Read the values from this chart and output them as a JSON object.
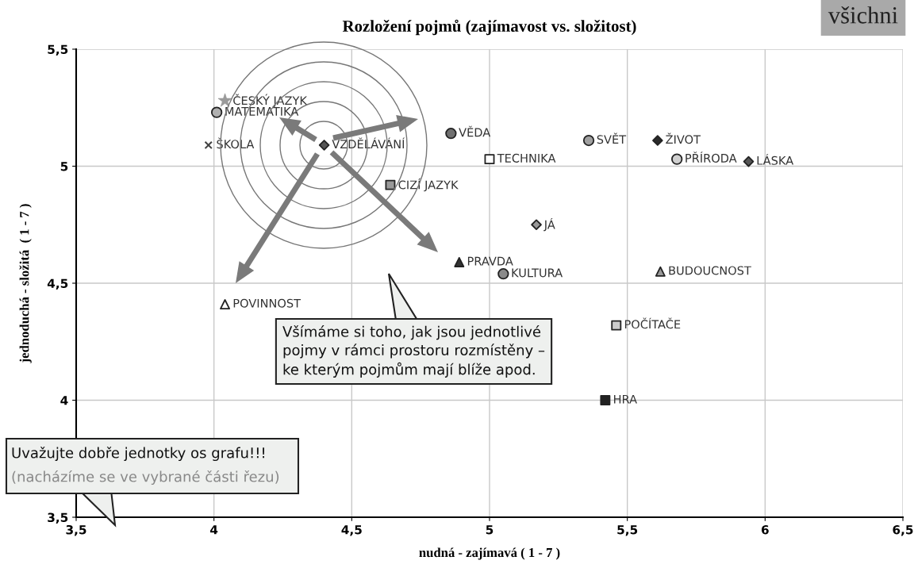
{
  "chart_data": {
    "type": "scatter",
    "title": "Rozložení pojmů (zajímavost vs. složitost)",
    "xlabel": "nudná - zajímavá ( 1 - 7 )",
    "ylabel": "jednoduchá - složitá  ( 1 - 7 )",
    "xlim": [
      3.5,
      6.5
    ],
    "ylim": [
      3.5,
      5.5
    ],
    "xticks": [
      {
        "value": 3.5,
        "label": "3,5"
      },
      4,
      {
        "value": 4.5,
        "label": "4,5"
      },
      5,
      {
        "value": 5.5,
        "label": "5,5"
      },
      6,
      {
        "value": 6.5,
        "label": "6,5"
      }
    ],
    "yticks": [
      {
        "value": 3.5,
        "label": "3,5"
      },
      4,
      {
        "value": 4.5,
        "label": "4,5"
      },
      5,
      {
        "value": 5.5,
        "label": "5,5"
      }
    ],
    "grid": true,
    "legend": false,
    "series": [
      {
        "name": "ČESKÝ JAZYK",
        "color": "#9a9a9a",
        "marker": "star",
        "x": [
          4.04
        ],
        "values": [
          5.28
        ]
      },
      {
        "name": "MATEMATIKA",
        "color": "#b0b0b0",
        "marker": "circle",
        "x": [
          4.01
        ],
        "values": [
          5.23
        ]
      },
      {
        "name": "ŠKOLA",
        "color": "#404040",
        "marker": "cross",
        "x": [
          3.98
        ],
        "values": [
          5.09
        ]
      },
      {
        "name": "VZDĚLÁVÁNÍ",
        "color": "#555555",
        "marker": "diamond",
        "x": [
          4.4
        ],
        "values": [
          5.09
        ]
      },
      {
        "name": "VĚDA",
        "color": "#707070",
        "marker": "circle",
        "x": [
          4.86
        ],
        "values": [
          5.14
        ]
      },
      {
        "name": "TECHNIKA",
        "color": "#ffffff",
        "marker": "square",
        "x": [
          5.0
        ],
        "values": [
          5.03
        ]
      },
      {
        "name": "CIZÍ JAZYK",
        "color": "#999999",
        "marker": "square",
        "x": [
          4.64
        ],
        "values": [
          4.92
        ]
      },
      {
        "name": "SVĚT",
        "color": "#a0a0a0",
        "marker": "circle",
        "x": [
          5.36
        ],
        "values": [
          5.11
        ]
      },
      {
        "name": "ŽIVOT",
        "color": "#2a2a2a",
        "marker": "diamond",
        "x": [
          5.61
        ],
        "values": [
          5.11
        ]
      },
      {
        "name": "PŘÍRODA",
        "color": "#d0d0d0",
        "marker": "circle",
        "x": [
          5.68
        ],
        "values": [
          5.03
        ]
      },
      {
        "name": "LÁSKA",
        "color": "#555555",
        "marker": "diamond",
        "x": [
          5.94
        ],
        "values": [
          5.02
        ]
      },
      {
        "name": "JÁ",
        "color": "#999999",
        "marker": "diamond",
        "x": [
          5.17
        ],
        "values": [
          4.75
        ]
      },
      {
        "name": "PRAVDA",
        "color": "#333333",
        "marker": "triangle",
        "x": [
          4.89
        ],
        "values": [
          4.59
        ]
      },
      {
        "name": "KULTURA",
        "color": "#8a8a8a",
        "marker": "circle",
        "x": [
          5.05
        ],
        "values": [
          4.54
        ]
      },
      {
        "name": "BUDOUCNOST",
        "color": "#999999",
        "marker": "triangle",
        "x": [
          5.62
        ],
        "values": [
          4.55
        ]
      },
      {
        "name": "POVINNOST",
        "color": "#ffffff",
        "marker": "triangle",
        "x": [
          4.04
        ],
        "values": [
          4.41
        ]
      },
      {
        "name": "POČÍTAČE",
        "color": "#cccccc",
        "marker": "square",
        "x": [
          5.46
        ],
        "values": [
          4.32
        ]
      },
      {
        "name": "HRA",
        "color": "#222222",
        "marker": "square",
        "x": [
          5.42
        ],
        "values": [
          4.0
        ]
      }
    ],
    "annotations": [
      "všichni",
      "Všímáme si toho, jak jsou jednotlivé\npojmy v rámci prostoru rozmístěny –\nke kterým pojmům mají blíže apod.",
      "Uvažujte dobře jednotky os grafu!!!",
      "(nacházíme se ve vybrané části řezu)"
    ]
  }
}
